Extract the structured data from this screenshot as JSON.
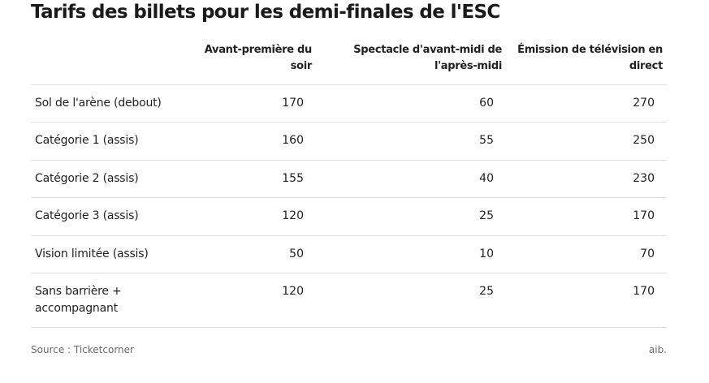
{
  "title": "Tarifs des billets pour les demi-finales de l'ESC",
  "chart_data": {
    "type": "table",
    "title": "Tarifs des billets pour les demi-finales de l'ESC",
    "columns": [
      "Avant-première du soir",
      "Spectacle d'avant-midi de l'après-midi",
      "Émission de télévision en direct"
    ],
    "column_lines": [
      [
        "Avant-première du",
        "soir"
      ],
      [
        "Spectacle d'avant-midi de",
        "l'après-midi"
      ],
      [
        "Émission de télévision en",
        "direct"
      ]
    ],
    "rows": [
      {
        "label_lines": [
          "Sol de l'arène (debout)"
        ],
        "values": [
          170,
          60,
          270
        ]
      },
      {
        "label_lines": [
          "Catégorie 1 (assis)"
        ],
        "values": [
          160,
          55,
          250
        ]
      },
      {
        "label_lines": [
          "Catégorie 2 (assis)"
        ],
        "values": [
          155,
          40,
          230
        ]
      },
      {
        "label_lines": [
          "Catégorie 3 (assis)"
        ],
        "values": [
          120,
          25,
          170
        ]
      },
      {
        "label_lines": [
          "Vision limitée (assis)"
        ],
        "values": [
          50,
          10,
          70
        ]
      },
      {
        "label_lines": [
          "Sans barrière +",
          "accompagnant"
        ],
        "values": [
          120,
          25,
          170
        ]
      }
    ]
  },
  "footer": {
    "source": "Source : Ticketcorner",
    "credit": "aib."
  }
}
